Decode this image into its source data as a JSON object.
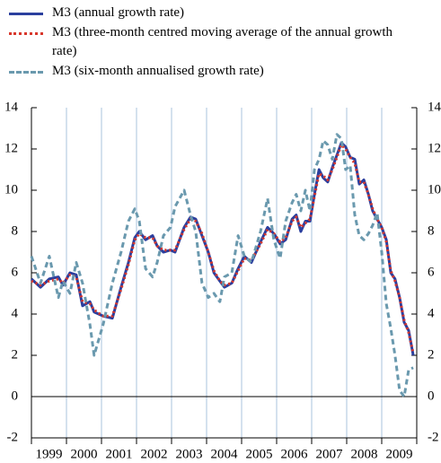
{
  "chart_data": {
    "type": "line",
    "categories": [
      "1999",
      "2000",
      "2001",
      "2002",
      "2003",
      "2004",
      "2005",
      "2006",
      "2007",
      "2008",
      "2009"
    ],
    "x": [
      1999.0,
      1999.26,
      1999.51,
      1999.77,
      1999.9,
      2000.1,
      2000.28,
      2000.46,
      2000.67,
      2000.79,
      2001.05,
      2001.31,
      2001.56,
      2001.77,
      2001.95,
      2002.08,
      2002.26,
      2002.46,
      2002.59,
      2002.77,
      2002.97,
      2003.1,
      2003.36,
      2003.54,
      2003.69,
      2003.87,
      2004.05,
      2004.21,
      2004.38,
      2004.51,
      2004.72,
      2004.9,
      2005.08,
      2005.28,
      2005.54,
      2005.74,
      2005.92,
      2006.1,
      2006.26,
      2006.44,
      2006.56,
      2006.69,
      2006.82,
      2006.95,
      2007.08,
      2007.21,
      2007.33,
      2007.46,
      2007.59,
      2007.72,
      2007.85,
      2007.97,
      2008.1,
      2008.23,
      2008.36,
      2008.49,
      2008.62,
      2008.74,
      2008.87,
      2009.0,
      2009.13,
      2009.26,
      2009.38,
      2009.51,
      2009.64,
      2009.77,
      2009.9
    ],
    "series": [
      {
        "name": "M3 (annual growth rate)",
        "color": "#2b3f9e",
        "style": "solid",
        "values": [
          5.7,
          5.3,
          5.7,
          5.8,
          5.4,
          6.0,
          5.9,
          4.4,
          4.6,
          4.1,
          3.9,
          3.8,
          5.3,
          6.5,
          7.7,
          8.0,
          7.6,
          7.8,
          7.3,
          7.0,
          7.1,
          7.0,
          8.2,
          8.7,
          8.6,
          7.8,
          7.0,
          6.0,
          5.6,
          5.3,
          5.5,
          6.2,
          6.8,
          6.5,
          7.5,
          8.2,
          7.9,
          7.4,
          7.6,
          8.6,
          8.8,
          8.0,
          8.5,
          8.5,
          9.8,
          11.0,
          10.6,
          10.4,
          11.1,
          11.7,
          12.3,
          12.1,
          11.6,
          11.5,
          10.3,
          10.5,
          9.8,
          9.0,
          8.6,
          8.2,
          7.6,
          6.0,
          5.7,
          4.8,
          3.6,
          3.2,
          2.0
        ]
      },
      {
        "name": "M3 (three-month centred moving average of the annual growth rate)",
        "color": "#d8372c",
        "style": "dotted",
        "values": [
          5.6,
          5.4,
          5.6,
          5.7,
          5.5,
          5.9,
          5.8,
          4.6,
          4.5,
          4.2,
          3.9,
          3.9,
          5.2,
          6.4,
          7.6,
          7.9,
          7.7,
          7.7,
          7.3,
          7.1,
          7.1,
          7.1,
          8.1,
          8.6,
          8.5,
          7.9,
          7.0,
          6.1,
          5.6,
          5.4,
          5.5,
          6.1,
          6.7,
          6.6,
          7.4,
          8.1,
          7.9,
          7.5,
          7.7,
          8.5,
          8.7,
          8.2,
          8.4,
          8.6,
          9.7,
          10.8,
          10.7,
          10.5,
          11.0,
          11.6,
          12.2,
          12.0,
          11.6,
          11.3,
          10.4,
          10.4,
          9.8,
          9.1,
          8.6,
          8.2,
          7.5,
          6.1,
          5.6,
          4.8,
          3.7,
          3.1,
          2.1
        ]
      },
      {
        "name": "M3 (six-month annualised growth rate)",
        "color": "#6a99ae",
        "style": "dashed",
        "values": [
          6.8,
          5.5,
          6.8,
          4.8,
          5.6,
          5.0,
          6.5,
          5.5,
          3.5,
          2.0,
          3.5,
          5.5,
          7.0,
          8.5,
          9.1,
          8.5,
          6.2,
          5.8,
          6.5,
          7.8,
          8.2,
          9.2,
          10.0,
          8.8,
          8.0,
          5.5,
          4.8,
          5.0,
          4.6,
          5.8,
          6.0,
          7.8,
          6.8,
          6.5,
          8.0,
          9.6,
          7.6,
          6.7,
          8.5,
          9.4,
          9.8,
          9.0,
          10.0,
          9.0,
          11.0,
          11.5,
          12.4,
          12.2,
          11.5,
          12.7,
          12.5,
          11.0,
          11.2,
          8.8,
          7.8,
          7.6,
          7.9,
          8.3,
          8.9,
          7.0,
          4.5,
          3.3,
          2.0,
          0.3,
          0.0,
          1.3,
          1.4
        ]
      }
    ],
    "xlim": [
      1999,
      2010
    ],
    "xticks": [
      1999,
      2000,
      2001,
      2002,
      2003,
      2004,
      2005,
      2006,
      2007,
      2008,
      2009,
      2010
    ],
    "ylim": [
      -2,
      14
    ],
    "yticks": [
      -2,
      0,
      2,
      4,
      6,
      8,
      10,
      12,
      14
    ],
    "y2lim": [
      -2,
      14
    ],
    "y2ticks": [
      -2,
      0,
      2,
      4,
      6,
      8,
      10,
      12,
      14
    ],
    "grid": true
  }
}
